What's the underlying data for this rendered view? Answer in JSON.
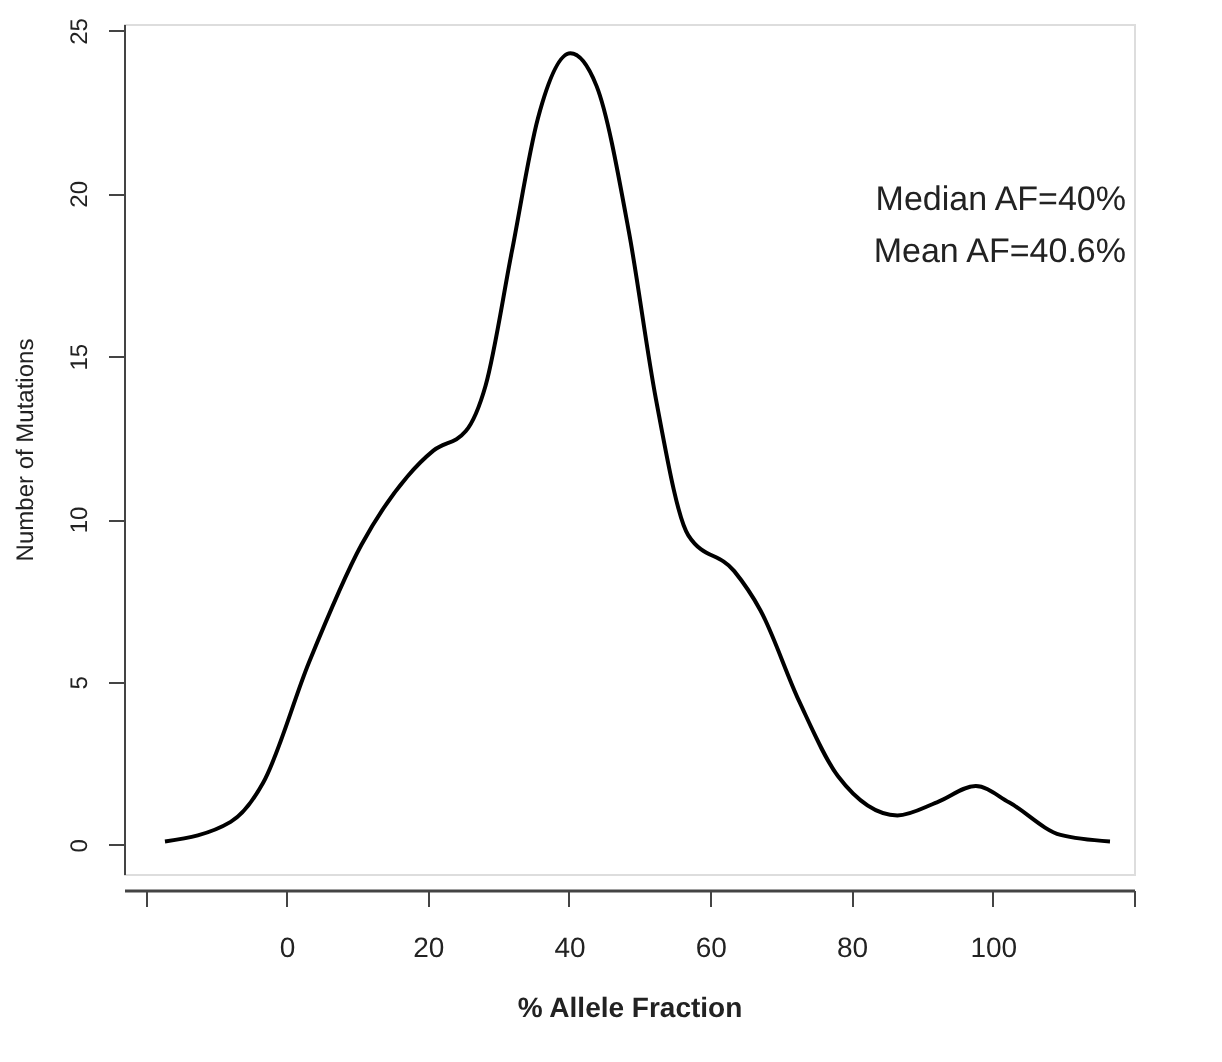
{
  "chart_data": {
    "type": "line",
    "xlabel": "% Allele Fraction",
    "ylabel": "Number of Mutations",
    "x": [
      -17.2,
      -7.9,
      -3.3,
      3.2,
      10.6,
      17.1,
      20.8,
      25.4,
      28.2,
      31.9,
      35.6,
      40.2,
      43.9,
      48.5,
      52.3,
      56.9,
      63.4,
      67.1,
      72.6,
      78.1,
      86.5,
      92.1,
      97.6,
      102.3,
      109.6,
      116.6
    ],
    "series": [
      {
        "color": "#000000",
        "values": [
          0.1,
          0.7,
          1.9,
          5.6,
          9.2,
          11.3,
          12.1,
          12.7,
          14.1,
          18.2,
          22.3,
          24.3,
          23.3,
          18.8,
          13.7,
          9.5,
          8.4,
          7.2,
          4.4,
          2.1,
          0.9,
          1.3,
          1.8,
          1.3,
          0.3,
          0.1
        ]
      }
    ],
    "xlim": [
      -23,
      120
    ],
    "ylim": [
      -0.9,
      25.2
    ],
    "xticks": [
      {
        "value": -20,
        "label": null
      },
      0,
      20,
      40,
      60,
      80,
      100,
      {
        "value": 120,
        "label": null
      }
    ],
    "yticks": [
      0,
      5,
      10,
      15,
      20,
      25
    ],
    "annotations": [
      "Median AF=40%",
      "Mean AF=40.6%"
    ],
    "grid": false,
    "marker": "none",
    "line_style": "solid"
  }
}
